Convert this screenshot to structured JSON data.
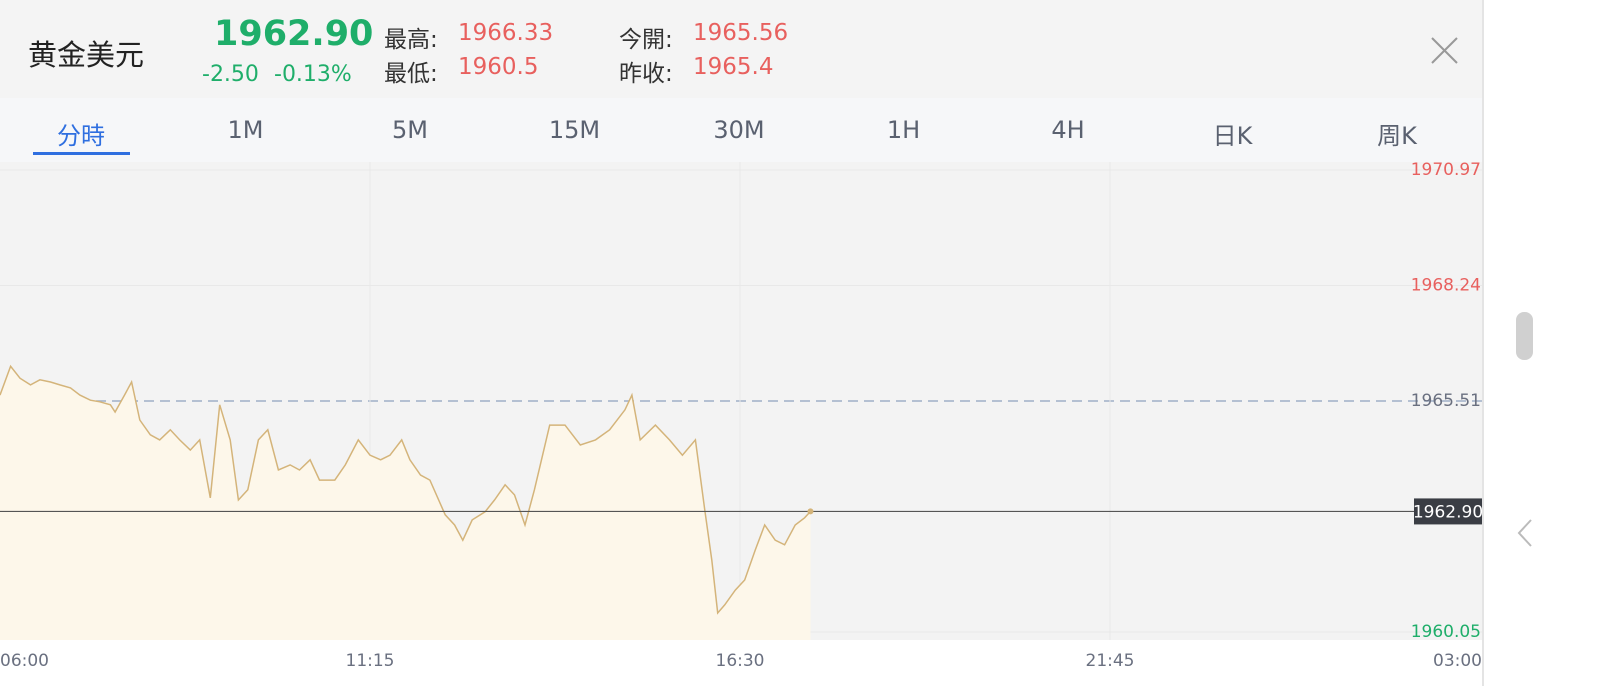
{
  "header": {
    "title": "黄金美元",
    "price": "1962.90",
    "change": "-2.50",
    "change_pct": "-0.13%",
    "stats": [
      {
        "label": "最高:",
        "value": "1966.33"
      },
      {
        "label": "最低:",
        "value": "1960.5"
      },
      {
        "label": "今開:",
        "value": "1965.56"
      },
      {
        "label": "昨收:",
        "value": "1965.4"
      }
    ]
  },
  "tabs": [
    "分時",
    "1M",
    "5M",
    "15M",
    "30M",
    "1H",
    "4H",
    "日K",
    "周K"
  ],
  "chart_data": {
    "type": "line",
    "x": [
      0,
      9,
      17,
      26,
      34,
      43,
      51,
      60,
      68,
      77,
      85,
      94,
      98,
      106,
      112,
      119,
      128,
      136,
      145,
      153,
      162,
      170,
      179,
      187,
      196,
      203,
      211,
      220,
      228,
      237,
      247,
      255,
      264,
      272,
      285,
      294,
      305,
      315,
      324,
      332,
      342,
      349,
      358,
      366,
      379,
      387,
      394,
      402,
      413,
      421,
      430,
      438,
      447,
      455,
      468,
      481,
      494,
      507,
      519,
      532,
      538,
      545,
      558,
      570,
      581,
      592,
      600,
      606,
      611,
      617,
      626,
      634,
      643,
      651,
      660,
      668,
      677,
      685,
      690
    ],
    "series": [
      {
        "name": null,
        "color": "#d4b47a",
        "values": [
          1965.65,
          1966.33,
          1966.05,
          1965.89,
          1966.01,
          1965.96,
          1965.89,
          1965.82,
          1965.65,
          1965.53,
          1965.49,
          1965.42,
          1965.25,
          1965.65,
          1965.96,
          1965.06,
          1964.71,
          1964.59,
          1964.83,
          1964.59,
          1964.35,
          1964.59,
          1963.22,
          1965.42,
          1964.59,
          1963.17,
          1963.41,
          1964.59,
          1964.83,
          1963.88,
          1964.0,
          1963.88,
          1964.12,
          1963.64,
          1963.64,
          1964.0,
          1964.59,
          1964.23,
          1964.12,
          1964.23,
          1964.59,
          1964.12,
          1963.76,
          1963.64,
          1962.82,
          1962.58,
          1962.22,
          1962.7,
          1962.89,
          1963.17,
          1963.53,
          1963.29,
          1962.58,
          1963.41,
          1964.94,
          1964.94,
          1964.47,
          1964.59,
          1964.83,
          1965.3,
          1965.65,
          1964.59,
          1964.94,
          1964.59,
          1964.23,
          1964.59,
          1962.93,
          1961.75,
          1960.5,
          1960.69,
          1961.04,
          1961.28,
          1961.99,
          1962.58,
          1962.22,
          1962.11,
          1962.58,
          1962.75,
          1962.9
        ]
      }
    ],
    "xlim": [
      0,
      1260
    ],
    "xticks": [
      {
        "value": 0,
        "label": "06:00"
      },
      {
        "value": 315,
        "label": "11:15"
      },
      {
        "value": 630,
        "label": "16:30"
      },
      {
        "value": 945,
        "label": "21:45"
      },
      {
        "value": 1260,
        "label": "03:00"
      }
    ],
    "ylim": [
      1960.05,
      1970.97
    ],
    "yticks": [
      1960.05,
      1965.51,
      1968.24,
      1970.97
    ],
    "grid": true
  }
}
